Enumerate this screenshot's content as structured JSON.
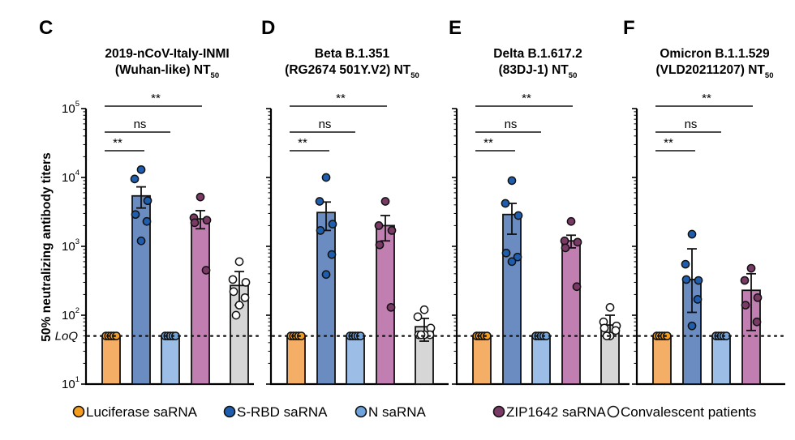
{
  "chart_data": {
    "type": "bar",
    "yscale": "log",
    "ylabel": "50% neutralizing antibody titers",
    "ylim": [
      10,
      100000
    ],
    "yticks": [
      {
        "base": "10",
        "exp": "1",
        "value": 10
      },
      {
        "base": "10",
        "exp": "2",
        "value": 100
      },
      {
        "base": "10",
        "exp": "3",
        "value": 1000
      },
      {
        "base": "10",
        "exp": "4",
        "value": 10000
      },
      {
        "base": "10",
        "exp": "5",
        "value": 100000
      }
    ],
    "loq": {
      "label": "LoQ",
      "value": 50
    },
    "groups": [
      {
        "key": "luc",
        "name": "Luciferase saRNA",
        "bar_color": "#F4AE65",
        "point_color": "#F39C1E",
        "point_fill": "filled"
      },
      {
        "key": "srbd",
        "name": "S-RBD saRNA",
        "bar_color": "#6B8CC1",
        "point_color": "#1F5EAE",
        "point_fill": "filled"
      },
      {
        "key": "n",
        "name": "N saRNA",
        "bar_color": "#9CBDE6",
        "point_color": "#6FA3DC",
        "point_fill": "filled"
      },
      {
        "key": "zip",
        "name": "ZIP1642 saRNA",
        "bar_color": "#C07EB1",
        "point_color": "#7A3A66",
        "point_fill": "filled"
      },
      {
        "key": "conv",
        "name": "Convalescent patients",
        "bar_color": "#D6D6D6",
        "point_color": "#FFFFFF",
        "point_fill": "open"
      }
    ],
    "panels": [
      {
        "letter": "C",
        "title_line1": "2019-nCoV-Italy-INMI",
        "title_line2": "(Wuhan-like) NT",
        "title_sub": "50",
        "show_yaxis": true,
        "significance": [
          {
            "label": "**",
            "from": "luc",
            "to": "srbd"
          },
          {
            "label": "ns",
            "from": "luc",
            "to": "n"
          },
          {
            "label": "**",
            "from": "luc",
            "to": "zip"
          }
        ],
        "bars": [
          {
            "group": "luc",
            "mean": 50,
            "sem_low": null,
            "sem_high": null,
            "points": [
              50,
              50,
              50,
              50,
              50
            ]
          },
          {
            "group": "srbd",
            "mean": 5400,
            "sem_low": 3600,
            "sem_high": 7300,
            "points": [
              13000,
              9500,
              4600,
              2900,
              2300,
              1200
            ]
          },
          {
            "group": "n",
            "mean": 50,
            "sem_low": null,
            "sem_high": null,
            "points": [
              50,
              50,
              50,
              50,
              50
            ]
          },
          {
            "group": "zip",
            "mean": 2500,
            "sem_low": 1800,
            "sem_high": 3300,
            "points": [
              5200,
              2600,
              2400,
              2200,
              450
            ]
          },
          {
            "group": "conv",
            "mean": 270,
            "sem_low": 140,
            "sem_high": 430,
            "points": [
              600,
              330,
              300,
              220,
              180,
              140,
              100
            ]
          }
        ]
      },
      {
        "letter": "D",
        "title_line1": "Beta B.1.351",
        "title_line2": "(RG2674 501Y.V2) NT",
        "title_sub": "50",
        "show_yaxis": false,
        "significance": [
          {
            "label": "**",
            "from": "luc",
            "to": "srbd"
          },
          {
            "label": "ns",
            "from": "luc",
            "to": "n"
          },
          {
            "label": "**",
            "from": "luc",
            "to": "zip"
          }
        ],
        "bars": [
          {
            "group": "luc",
            "mean": 50,
            "sem_low": null,
            "sem_high": null,
            "points": [
              50,
              50,
              50,
              50,
              50
            ]
          },
          {
            "group": "srbd",
            "mean": 3100,
            "sem_low": 1700,
            "sem_high": 4400,
            "points": [
              10000,
              4500,
              2100,
              1700,
              760,
              390
            ]
          },
          {
            "group": "n",
            "mean": 50,
            "sem_low": null,
            "sem_high": null,
            "points": [
              50,
              50,
              50,
              50,
              50
            ]
          },
          {
            "group": "zip",
            "mean": 2000,
            "sem_low": 1200,
            "sem_high": 2800,
            "points": [
              4500,
              2000,
              1700,
              1050,
              130
            ]
          },
          {
            "group": "conv",
            "mean": 68,
            "sem_low": 42,
            "sem_high": 90,
            "points": [
              120,
              95,
              65,
              52,
              52,
              52,
              52
            ]
          }
        ]
      },
      {
        "letter": "E",
        "title_line1": "Delta B.1.617.2",
        "title_line2": "(83DJ-1)  NT",
        "title_sub": "50",
        "show_yaxis": false,
        "significance": [
          {
            "label": "**",
            "from": "luc",
            "to": "srbd"
          },
          {
            "label": "ns",
            "from": "luc",
            "to": "n"
          },
          {
            "label": "**",
            "from": "luc",
            "to": "zip"
          }
        ],
        "bars": [
          {
            "group": "luc",
            "mean": 50,
            "sem_low": null,
            "sem_high": null,
            "points": [
              50,
              50,
              50,
              50,
              50
            ]
          },
          {
            "group": "srbd",
            "mean": 2900,
            "sem_low": 1500,
            "sem_high": 4200,
            "points": [
              9000,
              4200,
              2800,
              800,
              700,
              600
            ]
          },
          {
            "group": "n",
            "mean": 50,
            "sem_low": null,
            "sem_high": null,
            "points": [
              50,
              50,
              50,
              50,
              50
            ]
          },
          {
            "group": "zip",
            "mean": 1200,
            "sem_low": 950,
            "sem_high": 1450,
            "points": [
              2300,
              1200,
              1150,
              950,
              260
            ]
          },
          {
            "group": "conv",
            "mean": 72,
            "sem_low": 55,
            "sem_high": 100,
            "points": [
              130,
              80,
              70,
              65,
              60,
              50,
              50
            ]
          }
        ]
      },
      {
        "letter": "F",
        "title_line1": "Omicron B.1.1.529",
        "title_line2": "(VLD20211207) NT",
        "title_sub": "50",
        "show_yaxis": false,
        "significance": [
          {
            "label": "**",
            "from": "luc",
            "to": "srbd"
          },
          {
            "label": "ns",
            "from": "luc",
            "to": "n"
          },
          {
            "label": "**",
            "from": "luc",
            "to": "zip"
          }
        ],
        "bars": [
          {
            "group": "luc",
            "mean": 50,
            "sem_low": null,
            "sem_high": null,
            "points": [
              50,
              50,
              50,
              50,
              50
            ]
          },
          {
            "group": "srbd",
            "mean": 330,
            "sem_low": 110,
            "sem_high": 920,
            "points": [
              1500,
              550,
              320,
              330,
              170,
              70
            ]
          },
          {
            "group": "n",
            "mean": 50,
            "sem_low": null,
            "sem_high": null,
            "points": [
              50,
              50,
              50,
              50,
              50
            ]
          },
          {
            "group": "zip",
            "mean": 230,
            "sem_low": 60,
            "sem_high": 400,
            "points": [
              480,
              320,
              180,
              140,
              80
            ]
          }
        ]
      }
    ],
    "legend": {
      "placement": "bottom",
      "entries": [
        "Luciferase saRNA",
        "S-RBD saRNA",
        "N saRNA",
        "ZIP1642 saRNA",
        "Convalescent patients"
      ]
    }
  }
}
